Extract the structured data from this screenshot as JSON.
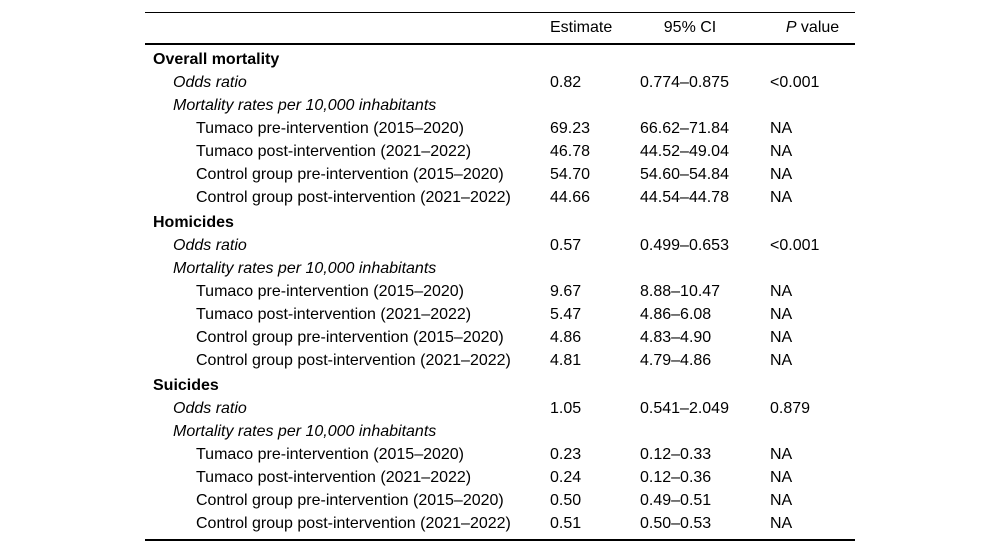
{
  "table": {
    "headers": {
      "estimate": "Estimate",
      "ci": "95% CI",
      "p_italic": "P",
      "p_rest": " value"
    },
    "sections": [
      {
        "title": "Overall mortality",
        "rows": [
          {
            "label": "Odds ratio",
            "indent": 1,
            "italic": true,
            "estimate": "0.82",
            "ci": "0.774–0.875",
            "p": "<0.001"
          },
          {
            "label": "Mortality rates per 10,000 inhabitants",
            "indent": 1,
            "italic": true,
            "estimate": "",
            "ci": "",
            "p": ""
          },
          {
            "label": "Tumaco pre-intervention (2015–2020)",
            "indent": 2,
            "italic": false,
            "estimate": "69.23",
            "ci": "66.62–71.84",
            "p": "NA"
          },
          {
            "label": "Tumaco post-intervention (2021–2022)",
            "indent": 2,
            "italic": false,
            "estimate": "46.78",
            "ci": "44.52–49.04",
            "p": "NA"
          },
          {
            "label": "Control group pre-intervention (2015–2020)",
            "indent": 2,
            "italic": false,
            "estimate": "54.70",
            "ci": "54.60–54.84",
            "p": "NA"
          },
          {
            "label": "Control group post-intervention (2021–2022)",
            "indent": 2,
            "italic": false,
            "estimate": "44.66",
            "ci": "44.54–44.78",
            "p": "NA"
          }
        ]
      },
      {
        "title": "Homicides",
        "rows": [
          {
            "label": "Odds ratio",
            "indent": 1,
            "italic": true,
            "estimate": "0.57",
            "ci": "0.499–0.653",
            "p": "<0.001"
          },
          {
            "label": "Mortality rates per 10,000 inhabitants",
            "indent": 1,
            "italic": true,
            "estimate": "",
            "ci": "",
            "p": ""
          },
          {
            "label": "Tumaco pre-intervention (2015–2020)",
            "indent": 2,
            "italic": false,
            "estimate": "9.67",
            "ci": "8.88–10.47",
            "p": "NA"
          },
          {
            "label": "Tumaco post-intervention (2021–2022)",
            "indent": 2,
            "italic": false,
            "estimate": "5.47",
            "ci": "4.86–6.08",
            "p": "NA"
          },
          {
            "label": "Control group pre-intervention (2015–2020)",
            "indent": 2,
            "italic": false,
            "estimate": "4.86",
            "ci": "4.83–4.90",
            "p": "NA"
          },
          {
            "label": "Control group post-intervention (2021–2022)",
            "indent": 2,
            "italic": false,
            "estimate": "4.81",
            "ci": "4.79–4.86",
            "p": "NA"
          }
        ]
      },
      {
        "title": "Suicides",
        "rows": [
          {
            "label": "Odds ratio",
            "indent": 1,
            "italic": true,
            "estimate": "1.05",
            "ci": "0.541–2.049",
            "p": "0.879"
          },
          {
            "label": "Mortality rates per 10,000 inhabitants",
            "indent": 1,
            "italic": true,
            "estimate": "",
            "ci": "",
            "p": ""
          },
          {
            "label": "Tumaco pre-intervention (2015–2020)",
            "indent": 2,
            "italic": false,
            "estimate": "0.23",
            "ci": "0.12–0.33",
            "p": "NA"
          },
          {
            "label": "Tumaco post-intervention (2021–2022)",
            "indent": 2,
            "italic": false,
            "estimate": "0.24",
            "ci": "0.12–0.36",
            "p": "NA"
          },
          {
            "label": "Control group pre-intervention (2015–2020)",
            "indent": 2,
            "italic": false,
            "estimate": "0.50",
            "ci": "0.49–0.51",
            "p": "NA"
          },
          {
            "label": "Control group post-intervention (2021–2022)",
            "indent": 2,
            "italic": false,
            "estimate": "0.51",
            "ci": "0.50–0.53",
            "p": "NA"
          }
        ]
      }
    ]
  }
}
